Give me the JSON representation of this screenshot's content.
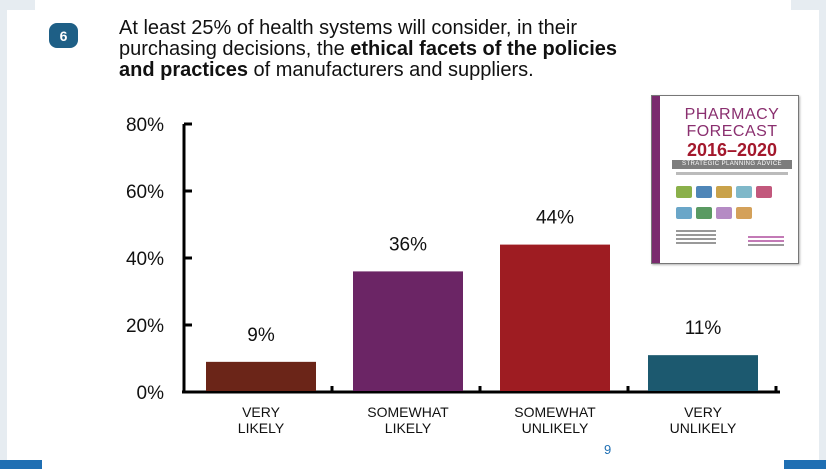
{
  "slide": {
    "number_badge": "6",
    "headline_line1": "At least 25% of health systems will consider, in their",
    "headline_line2_pre": "purchasing decisions, the ",
    "headline_line2_bold": "ethical facets of the policies",
    "headline_line3_bold": "and practices",
    "headline_line3_post": " of manufacturers and suppliers.",
    "page_number": "9"
  },
  "cover": {
    "line1": "PHARMACY",
    "line2": "FORECAST",
    "years": "2016–2020",
    "band": "STRATEGIC PLANNING ADVICE",
    "colors": {
      "spine": "#7a2a6e",
      "title": "#8a2f6f",
      "years": "#a3182c"
    }
  },
  "chart_data": {
    "type": "bar",
    "categories": [
      [
        "VERY",
        "LIKELY"
      ],
      [
        "SOMEWHAT",
        "LIKELY"
      ],
      [
        "SOMEWHAT",
        "UNLIKELY"
      ],
      [
        "VERY",
        "UNLIKELY"
      ]
    ],
    "values": [
      9,
      36,
      44,
      11
    ],
    "data_labels": [
      "9%",
      "36%",
      "44%",
      "11%"
    ],
    "colors": [
      "#6b2518",
      "#6b2565",
      "#9e1c22",
      "#1c596f"
    ],
    "ylim": [
      0,
      80
    ],
    "yticks": [
      0,
      20,
      40,
      60,
      80
    ],
    "ytick_labels": [
      "0%",
      "20%",
      "40%",
      "60%",
      "80%"
    ],
    "title": "",
    "xlabel": "",
    "ylabel": "",
    "grid": false
  }
}
